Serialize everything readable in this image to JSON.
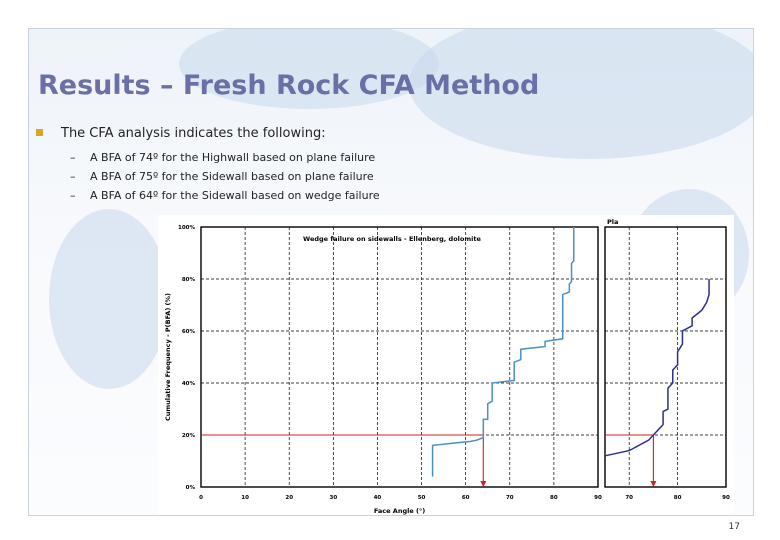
{
  "slide": {
    "title": "Results – Fresh Rock CFA Method",
    "bullet": "The CFA analysis indicates the following:",
    "sub_bullets": [
      "A BFA of 74º for the Highwall based on plane failure",
      "A BFA of 75º for the Sidewall based on plane failure",
      "A BFA of 64º for the Sidewall based on wedge failure"
    ],
    "page_number": "17"
  },
  "colors": {
    "title": "#6a6fa6",
    "bullet": "#d7a52a",
    "curve": "#4a90c8",
    "curve_right": "#2b2f8f",
    "reference": "#d0201a"
  },
  "chart_data": [
    {
      "type": "line",
      "title": "Wedge failure on sidewalls - Ellenberg, dolomite",
      "xlabel": "Face Angle (°)",
      "ylabel": "Cumulative Frequency - P(BFA) (%)",
      "x_ticks": [
        "0",
        "10",
        "20",
        "30",
        "40",
        "50",
        "60",
        "70",
        "80",
        "90"
      ],
      "y_ticks": [
        "0%",
        "20%",
        "40%",
        "60%",
        "80%",
        "100%"
      ],
      "xlim": [
        0,
        90
      ],
      "ylim": [
        0,
        100
      ],
      "grid": true,
      "series": [
        {
          "x": [
            52.5,
            52.5,
            58,
            61,
            62.5,
            64,
            64,
            65,
            65,
            66,
            66,
            71,
            71,
            72.5,
            72.5,
            78,
            78,
            82,
            82,
            83.5,
            83.5,
            84,
            84,
            84.5,
            84.5,
            84.5
          ],
          "y": [
            4,
            16,
            17,
            17.5,
            18,
            19,
            26,
            26,
            32,
            33,
            40,
            41,
            48,
            49,
            53,
            54,
            56,
            57,
            74,
            75,
            78,
            79,
            86,
            87,
            93,
            100
          ]
        }
      ],
      "reference": {
        "x": 64,
        "y": 20
      }
    },
    {
      "type": "line",
      "title": "Pla",
      "x_ticks": [
        "70",
        "80",
        "90"
      ],
      "xlim": [
        65,
        90
      ],
      "ylim": [
        0,
        100
      ],
      "grid": true,
      "series": [
        {
          "x": [
            65,
            70,
            72,
            74,
            75,
            76,
            77,
            77,
            78,
            78,
            79,
            79,
            80,
            80,
            81,
            81,
            83,
            83,
            85,
            86,
            86.5,
            86.5
          ],
          "y": [
            12,
            14,
            16,
            18,
            20,
            22,
            24,
            29,
            30,
            38,
            40,
            45,
            47,
            52,
            55,
            60,
            62,
            65,
            68,
            71,
            74,
            80
          ]
        }
      ],
      "reference": {
        "x": 75,
        "y": 20
      }
    }
  ]
}
